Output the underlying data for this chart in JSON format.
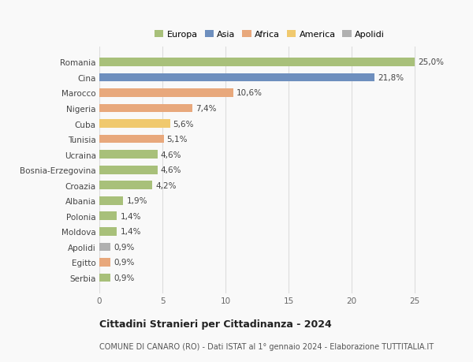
{
  "categories": [
    "Romania",
    "Cina",
    "Marocco",
    "Nigeria",
    "Cuba",
    "Tunisia",
    "Ucraina",
    "Bosnia-Erzegovina",
    "Croazia",
    "Albania",
    "Polonia",
    "Moldova",
    "Apolidi",
    "Egitto",
    "Serbia"
  ],
  "values": [
    25.0,
    21.8,
    10.6,
    7.4,
    5.6,
    5.1,
    4.6,
    4.6,
    4.2,
    1.9,
    1.4,
    1.4,
    0.9,
    0.9,
    0.9
  ],
  "labels": [
    "25,0%",
    "21,8%",
    "10,6%",
    "7,4%",
    "5,6%",
    "5,1%",
    "4,6%",
    "4,6%",
    "4,2%",
    "1,9%",
    "1,4%",
    "1,4%",
    "0,9%",
    "0,9%",
    "0,9%"
  ],
  "colors": [
    "#a8c07a",
    "#6e8fbe",
    "#e8a87c",
    "#e8a87c",
    "#f0c96e",
    "#e8a87c",
    "#a8c07a",
    "#a8c07a",
    "#a8c07a",
    "#a8c07a",
    "#a8c07a",
    "#a8c07a",
    "#b0b0b0",
    "#e8a87c",
    "#a8c07a"
  ],
  "legend_labels": [
    "Europa",
    "Asia",
    "Africa",
    "America",
    "Apolidi"
  ],
  "legend_colors": [
    "#a8c07a",
    "#6e8fbe",
    "#e8a87c",
    "#f0c96e",
    "#b0b0b0"
  ],
  "title": "Cittadini Stranieri per Cittadinanza - 2024",
  "subtitle": "COMUNE DI CANARO (RO) - Dati ISTAT al 1° gennaio 2024 - Elaborazione TUTTITALIA.IT",
  "xlim": [
    0,
    27
  ],
  "xticks": [
    0,
    5,
    10,
    15,
    20,
    25
  ],
  "background_color": "#f9f9f9",
  "grid_color": "#dddddd",
  "bar_height": 0.55,
  "label_fontsize": 7.5,
  "ytick_fontsize": 7.5,
  "xtick_fontsize": 7.5,
  "legend_fontsize": 8.0,
  "title_fontsize": 9.0,
  "subtitle_fontsize": 7.0
}
